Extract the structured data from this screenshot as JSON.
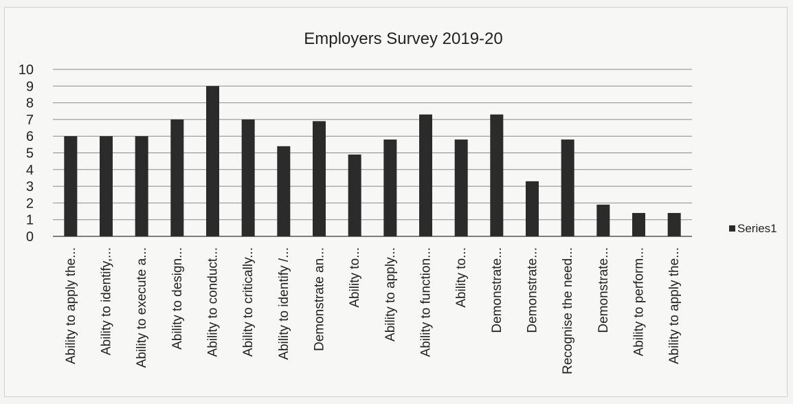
{
  "chart_data": {
    "type": "bar",
    "title": "Employers Survey 2019-20",
    "xlabel": "",
    "ylabel": "",
    "ylim": [
      0,
      10
    ],
    "y_ticks": [
      "0",
      "1",
      "2",
      "3",
      "4",
      "5",
      "6",
      "7",
      "8",
      "9",
      "10"
    ],
    "grid": true,
    "legend_position": "right",
    "categories": [
      "Ability to apply the...",
      "Ability to identify,...",
      "Ability to execute a...",
      "Ability to design...",
      "Ability to conduct...",
      "Ability to critically...",
      "Ability to identify /...",
      "Demonstrate an...",
      "Ability to...",
      "Ability to apply...",
      "Ability to function...",
      "Ability to...",
      "Demonstrate...",
      "Demonstrate...",
      "Recognise the need...",
      "Demonstrate...",
      "Ability to perform...",
      "Ability to apply the..."
    ],
    "series": [
      {
        "name": "Series1",
        "color": "#2b2b2b",
        "values": [
          6,
          6,
          6,
          7,
          9,
          7,
          5.4,
          6.9,
          4.9,
          5.8,
          7.3,
          5.8,
          7.3,
          3.3,
          5.8,
          1.9,
          1.4,
          1.4
        ]
      }
    ]
  }
}
